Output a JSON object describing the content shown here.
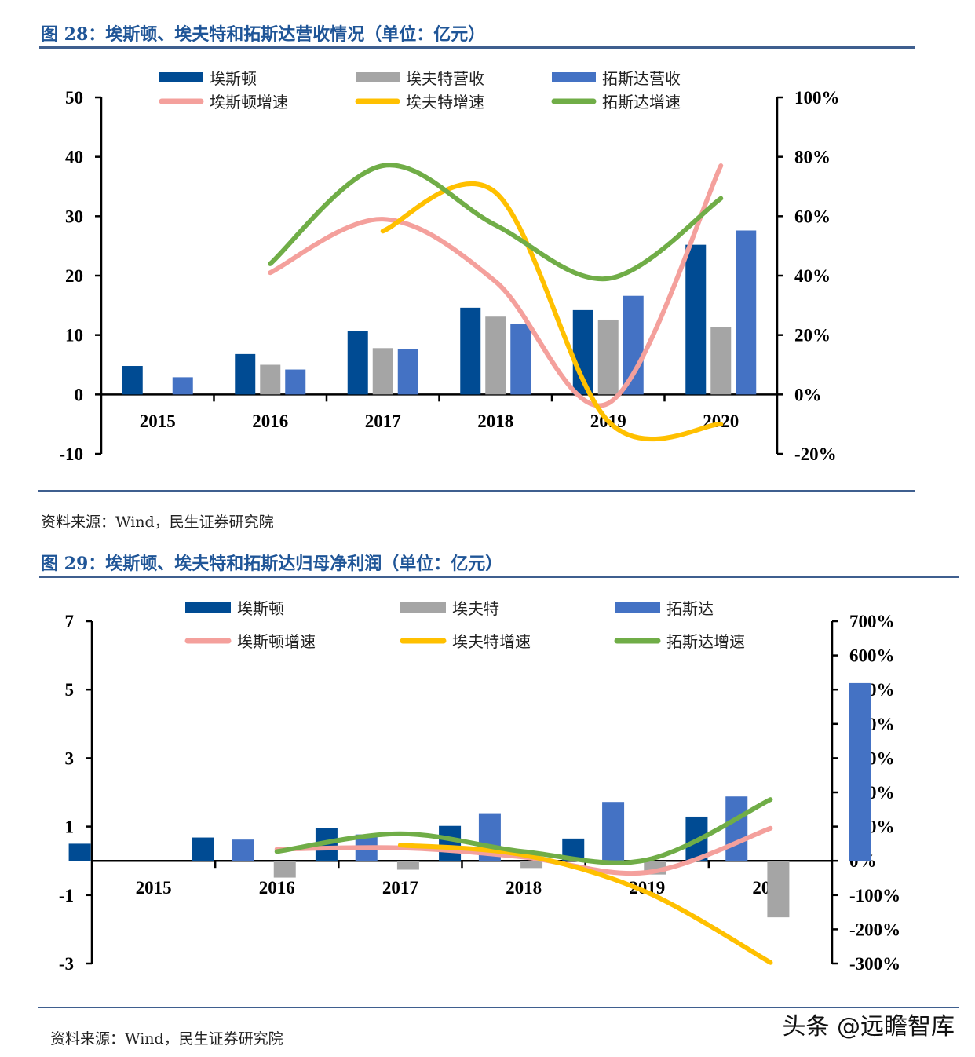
{
  "figures": [
    {
      "title": "图 28：埃斯顿、埃夫特和拓斯达营收情况（单位：亿元）",
      "source": "资料来源：Wind，民生证券研究院"
    },
    {
      "title": "图 29：埃斯顿、埃夫特和拓斯达归母净利润（单位：亿元）",
      "source": "资料来源：Wind，民生证券研究院"
    }
  ],
  "watermark": "头条 @远瞻智库",
  "colors": {
    "estun_bar": "#004b93",
    "efort_bar": "#a5a5a5",
    "topstar_bar": "#4472c4",
    "estun_line": "#f4a09c",
    "efort_line": "#ffc000",
    "topstar_line": "#70ad47",
    "title": "#1f5597",
    "rule": "#3f5f8f"
  },
  "chart_data": [
    {
      "type": "bar",
      "title": "埃斯顿、埃夫特和拓斯达营收情况（单位：亿元）",
      "categories": [
        "2015",
        "2016",
        "2017",
        "2018",
        "2019",
        "2020"
      ],
      "ylim": [
        -10,
        50
      ],
      "yticks": [
        "50",
        "40",
        "30",
        "20",
        "10",
        "0",
        "-10"
      ],
      "yticks_values": [
        50,
        40,
        30,
        20,
        10,
        0,
        -10
      ],
      "y2lim": [
        -20,
        100
      ],
      "y2ticks": [
        "100%",
        "80%",
        "60%",
        "40%",
        "20%",
        "0%",
        "-20%"
      ],
      "y2ticks_values": [
        100,
        80,
        60,
        40,
        20,
        0,
        -20
      ],
      "legend_placement": "top",
      "grid": false,
      "series": [
        {
          "name": "埃斯顿",
          "kind": "bar",
          "axis": "left",
          "color_key": "estun_bar",
          "values": [
            4.8,
            6.8,
            10.7,
            14.6,
            14.2,
            25.2
          ]
        },
        {
          "name": "埃夫特营收",
          "kind": "bar",
          "axis": "left",
          "color_key": "efort_bar",
          "values": [
            null,
            5.0,
            7.8,
            13.1,
            12.6,
            11.3
          ]
        },
        {
          "name": "拓斯达营收",
          "kind": "bar",
          "axis": "left",
          "color_key": "topstar_bar",
          "values": [
            2.9,
            4.2,
            7.6,
            11.9,
            16.6,
            27.6
          ]
        },
        {
          "name": "埃斯顿增速",
          "kind": "line",
          "axis": "right",
          "color_key": "estun_line",
          "values": [
            null,
            41,
            59,
            38,
            -3,
            77
          ]
        },
        {
          "name": "埃夫特增速",
          "kind": "line",
          "axis": "right",
          "color_key": "efort_line",
          "values": [
            null,
            null,
            55,
            68,
            -9,
            -10
          ]
        },
        {
          "name": "拓斯达增速",
          "kind": "line",
          "axis": "right",
          "color_key": "topstar_line",
          "values": [
            null,
            44,
            77,
            57,
            39,
            66
          ]
        }
      ]
    },
    {
      "type": "bar",
      "title": "埃斯顿、埃夫特和拓斯达归母净利润（单位：亿元）",
      "categories": [
        "2015",
        "2016",
        "2017",
        "2018",
        "2019",
        "2020"
      ],
      "ylim": [
        -3,
        7
      ],
      "yticks": [
        "7",
        "5",
        "3",
        "1",
        "-1",
        "-3"
      ],
      "yticks_values": [
        7,
        5,
        3,
        1,
        -1,
        -3
      ],
      "y2lim": [
        -300,
        700
      ],
      "y2ticks": [
        "700%",
        "600%",
        "500%",
        "400%",
        "300%",
        "200%",
        "100%",
        "0%",
        "-100%",
        "-200%",
        "-300%"
      ],
      "y2ticks_values": [
        700,
        600,
        500,
        400,
        300,
        200,
        100,
        0,
        -100,
        -200,
        -300
      ],
      "legend_placement": "top",
      "grid": false,
      "series": [
        {
          "name": "埃斯顿",
          "kind": "bar",
          "axis": "left",
          "color_key": "estun_bar",
          "values": [
            0.5,
            0.68,
            0.95,
            1.02,
            0.65,
            1.29
          ]
        },
        {
          "name": "埃夫特",
          "kind": "bar",
          "axis": "left",
          "color_key": "efort_bar",
          "values": [
            null,
            -0.49,
            -0.26,
            -0.21,
            -0.4,
            -1.65
          ]
        },
        {
          "name": "拓斯达",
          "kind": "bar",
          "axis": "left",
          "color_key": "topstar_bar",
          "values": [
            0.62,
            0.77,
            1.39,
            1.72,
            1.88,
            5.19
          ]
        },
        {
          "name": "埃斯顿增速",
          "kind": "line",
          "axis": "right",
          "color_key": "estun_line",
          "values": [
            null,
            34,
            38,
            11,
            -34,
            95
          ]
        },
        {
          "name": "埃夫特增速",
          "kind": "line",
          "axis": "right",
          "color_key": "efort_line",
          "values": [
            null,
            null,
            46,
            17,
            -92,
            -297
          ]
        },
        {
          "name": "拓斯达增速",
          "kind": "line",
          "axis": "right",
          "color_key": "topstar_line",
          "values": [
            null,
            27,
            79,
            27,
            3,
            179
          ]
        }
      ]
    }
  ]
}
